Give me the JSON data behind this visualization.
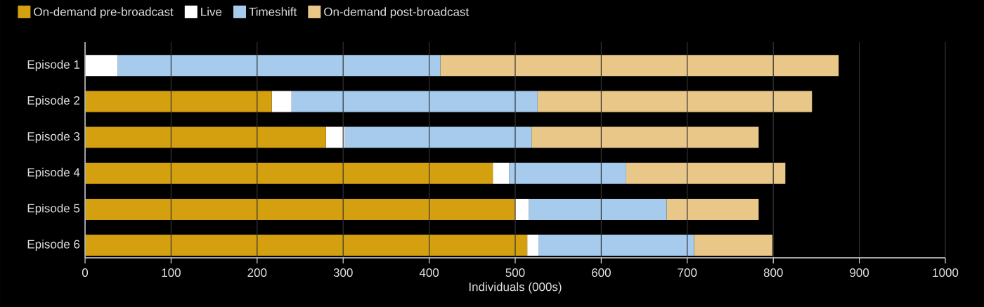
{
  "chart_data": {
    "type": "bar",
    "orientation": "horizontal",
    "stacked": true,
    "categories": [
      "Episode 1",
      "Episode 2",
      "Episode 3",
      "Episode 4",
      "Episode 5",
      "Episode 6"
    ],
    "series": [
      {
        "name": "On-demand pre-broadcast",
        "color": "#d4a010",
        "values": [
          0,
          217,
          280,
          474,
          500,
          514
        ]
      },
      {
        "name": "Live",
        "color": "#ffffff",
        "values": [
          38,
          23,
          22,
          19,
          16,
          13
        ]
      },
      {
        "name": "Timeshift",
        "color": "#a6cbec",
        "values": [
          375,
          286,
          217,
          136,
          160,
          181
        ]
      },
      {
        "name": "On-demand post-broadcast",
        "color": "#e8c788",
        "values": [
          463,
          319,
          264,
          185,
          107,
          91
        ]
      }
    ],
    "xlabel": "Individuals (000s)",
    "xlim": [
      0,
      1000
    ],
    "xticks": [
      0,
      100,
      200,
      300,
      400,
      500,
      600,
      700,
      800,
      900,
      1000
    ],
    "grid": "x",
    "legend": "top left"
  }
}
